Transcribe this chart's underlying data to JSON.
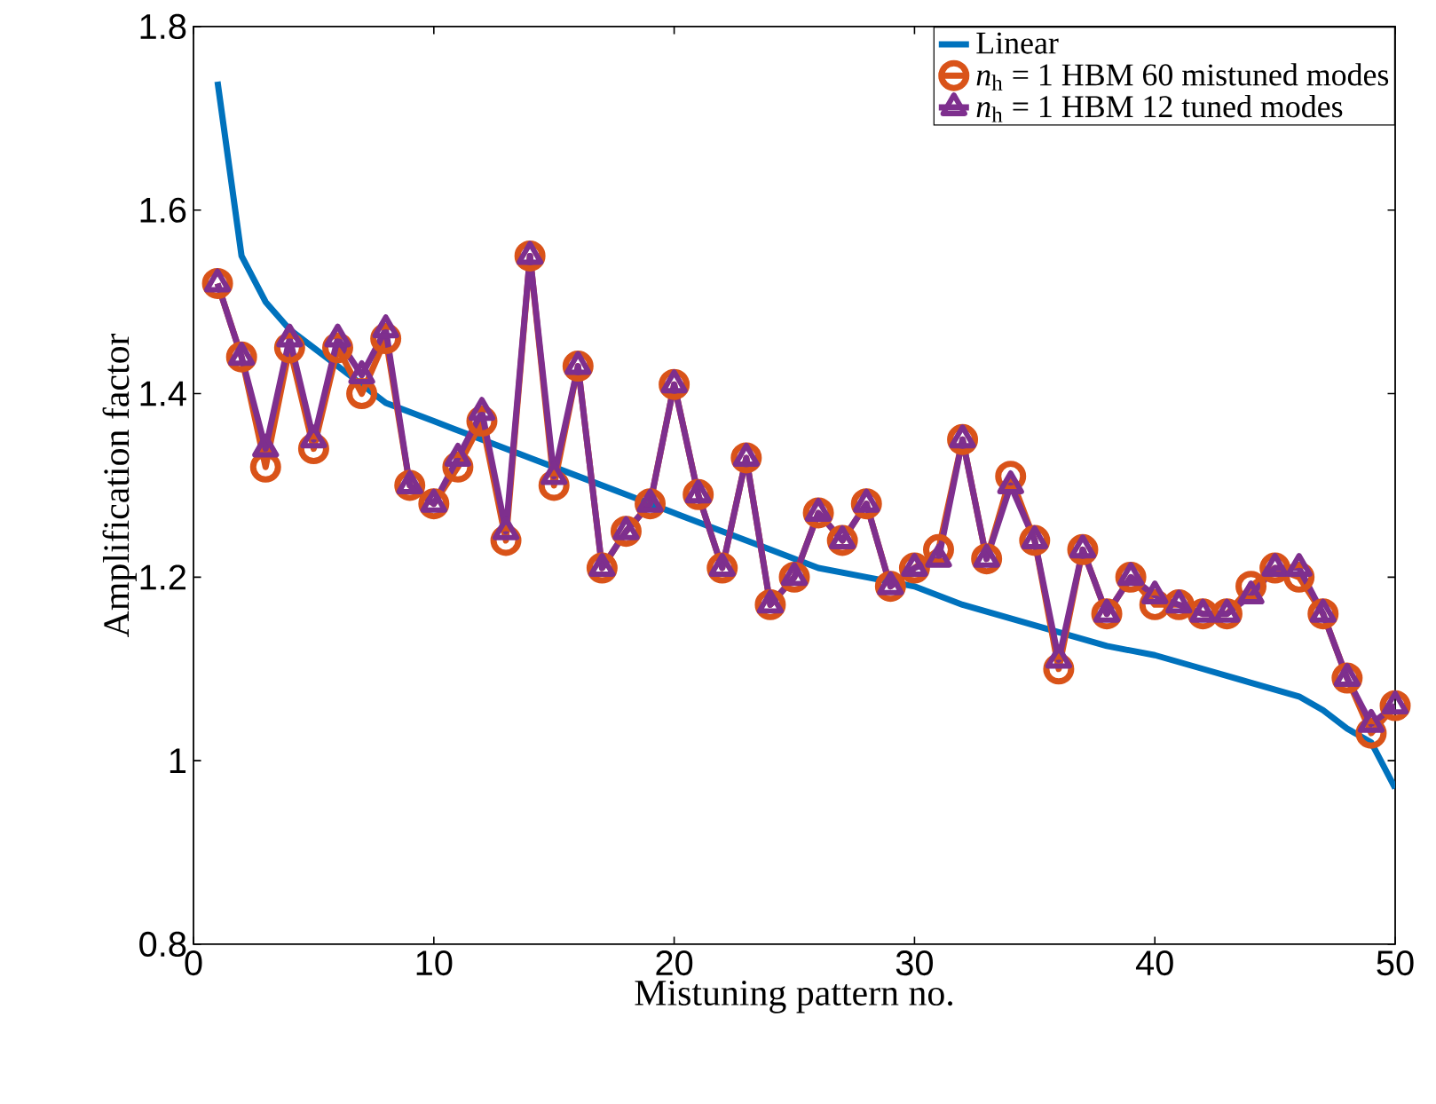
{
  "chart_data": {
    "type": "line",
    "xlabel": "Mistuning pattern no.",
    "ylabel": "Amplification factor",
    "xlim": [
      0,
      50
    ],
    "ylim": [
      0.8,
      1.8
    ],
    "xticks": [
      0,
      10,
      20,
      30,
      40,
      50
    ],
    "yticks": [
      0.8,
      1,
      1.2,
      1.4,
      1.6,
      1.8
    ],
    "legend": "top right",
    "grid": false,
    "series": [
      {
        "name": "Linear",
        "color": "#0072bd",
        "marker": "none",
        "x": [
          1,
          2,
          3,
          4,
          5,
          6,
          7,
          8,
          9,
          10,
          12,
          14,
          16,
          18,
          20,
          22,
          24,
          26,
          28,
          30,
          32,
          34,
          36,
          38,
          40,
          42,
          44,
          46,
          47,
          48,
          49,
          50
        ],
        "values": [
          1.74,
          1.55,
          1.5,
          1.47,
          1.45,
          1.43,
          1.41,
          1.39,
          1.38,
          1.37,
          1.35,
          1.33,
          1.31,
          1.29,
          1.27,
          1.25,
          1.23,
          1.21,
          1.2,
          1.19,
          1.17,
          1.155,
          1.14,
          1.125,
          1.115,
          1.1,
          1.085,
          1.07,
          1.055,
          1.035,
          1.02,
          0.97
        ]
      },
      {
        "name": "*n*$_{h}$ = 1 HBM 60 mistuned modes",
        "color": "#d95319",
        "marker": "circle",
        "x": [
          1,
          2,
          3,
          4,
          5,
          6,
          7,
          8,
          9,
          10,
          11,
          12,
          13,
          14,
          15,
          16,
          17,
          18,
          19,
          20,
          21,
          22,
          23,
          24,
          25,
          26,
          27,
          28,
          29,
          30,
          31,
          32,
          33,
          34,
          35,
          36,
          37,
          38,
          39,
          40,
          41,
          42,
          43,
          44,
          45,
          46,
          47,
          48,
          49,
          50
        ],
        "values": [
          1.52,
          1.44,
          1.32,
          1.45,
          1.34,
          1.45,
          1.4,
          1.46,
          1.3,
          1.28,
          1.32,
          1.37,
          1.24,
          1.55,
          1.3,
          1.43,
          1.21,
          1.25,
          1.28,
          1.41,
          1.29,
          1.21,
          1.33,
          1.17,
          1.2,
          1.27,
          1.24,
          1.28,
          1.19,
          1.21,
          1.23,
          1.35,
          1.22,
          1.31,
          1.24,
          1.1,
          1.23,
          1.16,
          1.2,
          1.17,
          1.17,
          1.16,
          1.16,
          1.19,
          1.21,
          1.2,
          1.16,
          1.09,
          1.03,
          1.06
        ]
      },
      {
        "name": "*n*$_{h}$ = 1 HBM 12 tuned modes",
        "color": "#7e2f8e",
        "marker": "triangle",
        "x": [
          1,
          2,
          3,
          4,
          5,
          6,
          7,
          8,
          9,
          10,
          11,
          12,
          13,
          14,
          15,
          16,
          17,
          18,
          19,
          20,
          21,
          22,
          23,
          24,
          25,
          26,
          27,
          28,
          29,
          30,
          31,
          32,
          33,
          34,
          35,
          36,
          37,
          38,
          39,
          40,
          41,
          42,
          43,
          44,
          45,
          46,
          47,
          48,
          49,
          50
        ],
        "values": [
          1.52,
          1.44,
          1.34,
          1.46,
          1.35,
          1.46,
          1.42,
          1.47,
          1.3,
          1.28,
          1.33,
          1.38,
          1.25,
          1.55,
          1.31,
          1.43,
          1.21,
          1.25,
          1.28,
          1.41,
          1.29,
          1.21,
          1.33,
          1.17,
          1.2,
          1.27,
          1.24,
          1.28,
          1.19,
          1.21,
          1.22,
          1.35,
          1.22,
          1.3,
          1.24,
          1.11,
          1.23,
          1.16,
          1.2,
          1.18,
          1.17,
          1.16,
          1.16,
          1.18,
          1.21,
          1.21,
          1.16,
          1.09,
          1.04,
          1.06
        ]
      }
    ]
  }
}
